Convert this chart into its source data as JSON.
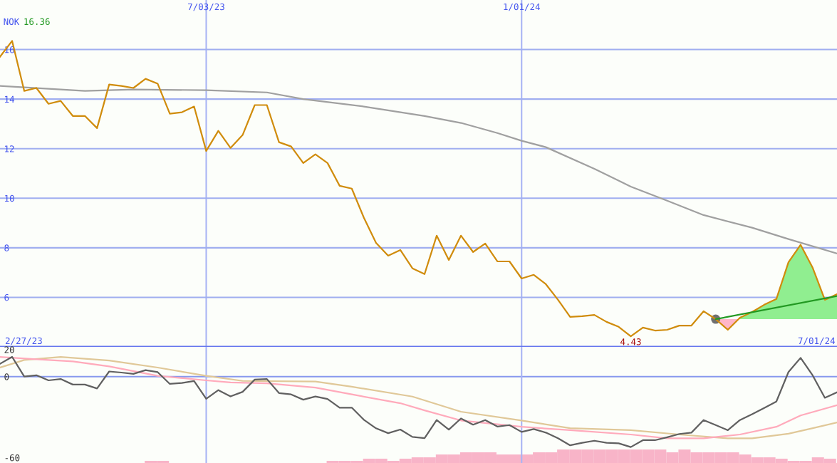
{
  "chart_data": [
    {
      "type": "line",
      "annotations": [
        "NOK",
        "16.36",
        "2/27/23",
        "7/01/24",
        {
          "text": "4.43",
          "x": "2024-03-04",
          "y": 4.43
        }
      ],
      "x": [
        "2023-03-06",
        "2023-03-13",
        "2023-03-20",
        "2023-03-27",
        "2023-04-03",
        "2023-04-10",
        "2023-04-17",
        "2023-04-24",
        "2023-05-01",
        "2023-05-08",
        "2023-05-15",
        "2023-05-22",
        "2023-05-29",
        "2023-06-05",
        "2023-06-12",
        "2023-06-19",
        "2023-06-26",
        "2023-07-03",
        "2023-07-10",
        "2023-07-17",
        "2023-07-24",
        "2023-07-31",
        "2023-08-07",
        "2023-08-14",
        "2023-08-21",
        "2023-08-28",
        "2023-09-04",
        "2023-09-11",
        "2023-09-18",
        "2023-09-25",
        "2023-10-02",
        "2023-10-09",
        "2023-10-16",
        "2023-10-23",
        "2023-10-30",
        "2023-11-06",
        "2023-11-13",
        "2023-11-20",
        "2023-11-27",
        "2023-12-04",
        "2023-12-11",
        "2023-12-18",
        "2023-12-25",
        "2024-01-01",
        "2024-01-08",
        "2024-01-15",
        "2024-01-22",
        "2024-01-29",
        "2024-02-05",
        "2024-02-12",
        "2024-02-19",
        "2024-02-26",
        "2024-03-04",
        "2024-03-11",
        "2024-03-18",
        "2024-03-25",
        "2024-04-01",
        "2024-04-08",
        "2024-04-15",
        "2024-04-22",
        "2024-04-29",
        "2024-05-06",
        "2024-05-13",
        "2024-05-20",
        "2024-05-27",
        "2024-06-03",
        "2024-06-10",
        "2024-06-17",
        "2024-06-24",
        "2024-07-01"
      ],
      "series": [
        {
          "color": "#a0a0a0",
          "x": [
            "2023-03-06",
            "2023-04-24",
            "2023-05-22",
            "2023-07-03",
            "2023-08-07",
            "2023-08-28",
            "2023-10-02",
            "2023-11-06",
            "2023-11-27",
            "2023-12-18",
            "2024-01-01",
            "2024-01-15",
            "2024-02-12",
            "2024-03-04",
            "2024-03-25",
            "2024-04-15",
            "2024-05-13",
            "2024-06-03",
            "2024-07-01"
          ],
          "values": [
            14.53,
            14.33,
            14.39,
            14.36,
            14.27,
            14.0,
            13.7,
            13.32,
            13.04,
            12.63,
            12.32,
            12.06,
            11.19,
            10.47,
            9.9,
            9.32,
            8.81,
            8.35,
            7.77
          ]
        },
        {
          "color": "#d08c0c",
          "values": [
            15.71,
            16.35,
            14.33,
            14.45,
            13.81,
            13.93,
            13.32,
            13.32,
            12.83,
            14.59,
            14.53,
            14.45,
            14.82,
            14.62,
            13.41,
            13.47,
            13.7,
            11.91,
            12.72,
            12.03,
            12.55,
            13.76,
            13.76,
            12.26,
            12.09,
            11.42,
            11.77,
            11.42,
            10.5,
            10.39,
            9.21,
            8.2,
            7.68,
            7.91,
            7.17,
            6.94,
            8.49,
            7.51,
            8.49,
            7.83,
            8.17,
            7.45,
            7.45,
            6.76,
            6.91,
            6.53,
            5.9,
            5.21,
            5.24,
            5.29,
            5.01,
            4.81,
            4.43,
            4.78,
            4.66,
            4.69,
            4.86,
            4.86,
            5.44,
            5.12,
            4.69,
            5.18,
            5.41,
            5.7,
            5.93,
            7.42,
            8.12,
            7.19,
            5.9,
            6.13
          ]
        },
        {
          "color": "#229922",
          "x": [
            "2024-04-22",
            "2024-07-01"
          ],
          "values": [
            5.12,
            6.05
          ]
        },
        {
          "type": "scatter",
          "color": "#707070",
          "x": [
            "2024-04-22"
          ],
          "values": [
            5.12
          ]
        }
      ],
      "xlim": [
        "2023-03-06",
        "2024-07-01"
      ],
      "ylim": [
        4,
        18
      ],
      "xticks": [
        {
          "value": "2023-07-03",
          "label": "7/03/23"
        },
        {
          "value": "2024-01-01",
          "label": "1/01/24"
        }
      ],
      "yticks": [
        6,
        8,
        10,
        12,
        14,
        16
      ],
      "grid": true
    },
    {
      "type": "line",
      "x": [
        "2023-03-06",
        "2023-03-13",
        "2023-03-20",
        "2023-03-27",
        "2023-04-03",
        "2023-04-10",
        "2023-04-17",
        "2023-04-24",
        "2023-05-01",
        "2023-05-08",
        "2023-05-15",
        "2023-05-22",
        "2023-05-29",
        "2023-06-05",
        "2023-06-12",
        "2023-06-19",
        "2023-06-26",
        "2023-07-03",
        "2023-07-10",
        "2023-07-17",
        "2023-07-24",
        "2023-07-31",
        "2023-08-07",
        "2023-08-14",
        "2023-08-21",
        "2023-08-28",
        "2023-09-04",
        "2023-09-11",
        "2023-09-18",
        "2023-09-25",
        "2023-10-02",
        "2023-10-09",
        "2023-10-16",
        "2023-10-23",
        "2023-10-30",
        "2023-11-06",
        "2023-11-13",
        "2023-11-20",
        "2023-11-27",
        "2023-12-04",
        "2023-12-11",
        "2023-12-18",
        "2023-12-25",
        "2024-01-01",
        "2024-01-08",
        "2024-01-15",
        "2024-01-22",
        "2024-01-29",
        "2024-02-05",
        "2024-02-12",
        "2024-02-19",
        "2024-02-26",
        "2024-03-04",
        "2024-03-11",
        "2024-03-18",
        "2024-03-25",
        "2024-04-01",
        "2024-04-08",
        "2024-04-15",
        "2024-04-22",
        "2024-04-29",
        "2024-05-06",
        "2024-05-13",
        "2024-05-20",
        "2024-05-27",
        "2024-06-03",
        "2024-06-10",
        "2024-06-17",
        "2024-06-24",
        "2024-07-01"
      ],
      "series": [
        {
          "type": "bar",
          "color": "#f8b4c8",
          "x": [
            "2023-06-01",
            "2023-06-08",
            "2023-09-14",
            "2023-09-21",
            "2023-09-28",
            "2023-10-05",
            "2023-10-12",
            "2023-10-19",
            "2023-10-26",
            "2023-11-02",
            "2023-11-09",
            "2023-11-16",
            "2023-11-23",
            "2023-11-30",
            "2023-12-07",
            "2023-12-14",
            "2023-12-21",
            "2023-12-28",
            "2024-01-04",
            "2024-01-11",
            "2024-01-18",
            "2024-01-25",
            "2024-02-01",
            "2024-02-08",
            "2024-02-15",
            "2024-02-22",
            "2024-02-29",
            "2024-03-07",
            "2024-03-14",
            "2024-03-21",
            "2024-03-28",
            "2024-04-04",
            "2024-04-11",
            "2024-04-18",
            "2024-04-25",
            "2024-05-02",
            "2024-05-09",
            "2024-05-16",
            "2024-05-23",
            "2024-05-30",
            "2024-06-06",
            "2024-06-13",
            "2024-06-20",
            "2024-06-27"
          ],
          "base": [
            -64,
            -64,
            -64,
            -64,
            -64,
            -64,
            -64,
            -64,
            -64,
            -64,
            -64,
            -64,
            -64,
            -64,
            -64,
            -64,
            -64,
            -64,
            -64,
            -64,
            -64,
            -64,
            -64,
            -64,
            -64,
            -64,
            -64,
            -64,
            -64,
            -64,
            -64,
            -64,
            -64,
            -64,
            -64,
            -64,
            -64,
            -64,
            -64,
            -64,
            -64,
            -64,
            -64,
            -64
          ],
          "values": [
            1.6,
            1.6,
            1.6,
            1.6,
            1.6,
            3.2,
            3.2,
            1.6,
            3.2,
            4.2,
            4.2,
            6.3,
            6.3,
            7.9,
            7.9,
            7.9,
            6.3,
            6.3,
            6.3,
            7.9,
            7.9,
            10,
            10,
            10,
            10,
            10,
            10,
            10,
            10,
            10,
            7.9,
            10,
            7.9,
            7.9,
            7.9,
            7.9,
            6.3,
            4.2,
            4.2,
            3.2,
            1.6,
            1.6,
            4.2,
            3.2
          ]
        },
        {
          "color": "#e0c898",
          "x": [
            "2023-03-06",
            "2023-03-20",
            "2023-04-10",
            "2023-05-08",
            "2023-06-05",
            "2023-07-03",
            "2023-07-24",
            "2023-09-04",
            "2023-09-25",
            "2023-10-30",
            "2023-11-27",
            "2024-01-01",
            "2024-01-29",
            "2024-03-04",
            "2024-04-01",
            "2024-04-29",
            "2024-05-13",
            "2024-06-03",
            "2024-06-17",
            "2024-07-01"
          ],
          "values": [
            6.7,
            12.3,
            14.6,
            11.9,
            6.7,
            0.6,
            -3.2,
            -3.7,
            -7.5,
            -14.8,
            -26.0,
            -32.5,
            -38.2,
            -39.7,
            -42.9,
            -45.7,
            -45.7,
            -42.3,
            -38.2,
            -34.0
          ]
        },
        {
          "color": "#ffaabb",
          "x": [
            "2023-03-06",
            "2023-03-27",
            "2023-04-17",
            "2023-05-08",
            "2023-06-05",
            "2023-07-03",
            "2023-07-17",
            "2023-08-07",
            "2023-09-04",
            "2023-09-25",
            "2023-10-23",
            "2023-11-06",
            "2023-11-27",
            "2024-01-01",
            "2024-01-29",
            "2024-03-04",
            "2024-03-25",
            "2024-04-15",
            "2024-05-06",
            "2024-05-27",
            "2024-06-10",
            "2024-07-01"
          ],
          "values": [
            14.6,
            12.8,
            11.3,
            7.6,
            0.6,
            -2.8,
            -4.3,
            -5.0,
            -8.1,
            -13.2,
            -19.7,
            -25.0,
            -32.5,
            -37.2,
            -39.7,
            -42.9,
            -45.7,
            -45.7,
            -42.9,
            -37.2,
            -28.8,
            -21.2
          ]
        },
        {
          "color": "#606060",
          "values": [
            9.5,
            14.6,
            0,
            1.0,
            -2.8,
            -1.8,
            -5.9,
            -5.9,
            -8.8,
            3.8,
            3.0,
            2.0,
            4.8,
            3.3,
            -5.4,
            -4.7,
            -3.3,
            -16.4,
            -10.0,
            -14.7,
            -11.3,
            -2.2,
            -1.8,
            -12.2,
            -13.2,
            -17.1,
            -14.7,
            -16.6,
            -23.0,
            -23.0,
            -32.0,
            -38.3,
            -41.9,
            -39.2,
            -44.7,
            -45.6,
            -32.2,
            -39.3,
            -31.0,
            -35.6,
            -32.2,
            -37.0,
            -35.9,
            -41.0,
            -38.9,
            -41.5,
            -45.7,
            -50.9,
            -49.0,
            -47.5,
            -49.0,
            -49.4,
            -52.2,
            -47.1,
            -47.1,
            -44.9,
            -42.5,
            -41.5,
            -32.2,
            -35.9,
            -39.7,
            -32.2,
            -27.9,
            -23.2,
            -18.5,
            3.4,
            13.9,
            0.8,
            -15.7,
            -11.6
          ]
        }
      ],
      "xlim": [
        "2023-03-06",
        "2024-07-01"
      ],
      "ylim": [
        -64,
        22
      ],
      "xticks": [
        {
          "value": "2023-07-03",
          "label": null
        },
        {
          "value": "2024-01-01",
          "label": null
        }
      ],
      "yticks": [
        -60,
        0,
        20
      ],
      "tick_labels": "y",
      "grid": "x",
      "ref_lines": [
        {
          "axis": "y",
          "value": 0,
          "color": "#8898ee"
        }
      ]
    }
  ]
}
